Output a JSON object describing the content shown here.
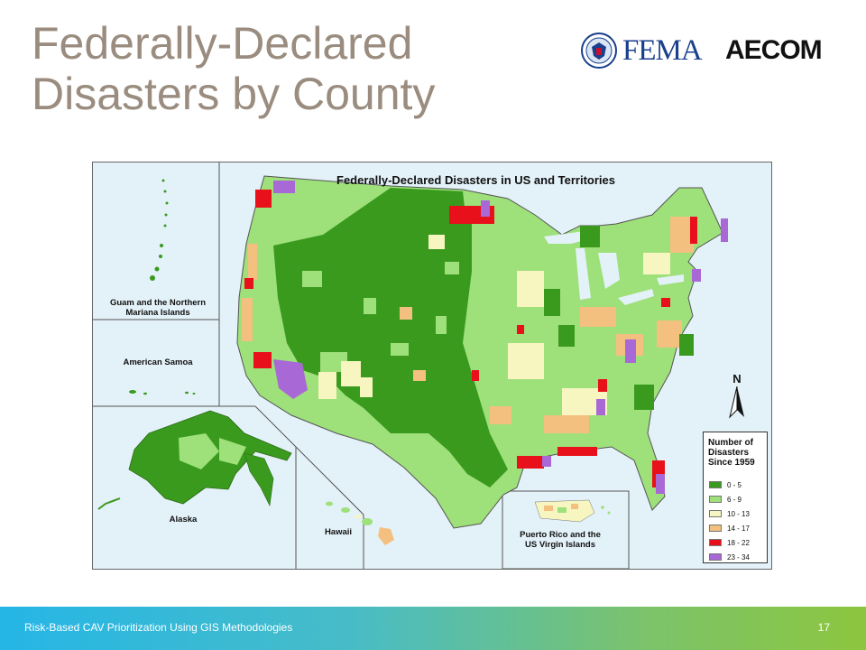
{
  "slide": {
    "title_line1": "Federally-Declared",
    "title_line2": "Disasters by County"
  },
  "logos": {
    "fema": "FEMA",
    "aecom": "AECOM"
  },
  "map": {
    "title": "Federally-Declared Disasters in US and Territories",
    "insets": {
      "guam_line1": "Guam and the Northern",
      "guam_line2": "Mariana Islands",
      "samoa": "American Samoa",
      "alaska": "Alaska",
      "hawaii": "Hawaii",
      "pr_line1": "Puerto Rico and the",
      "pr_line2": "US Virgin Islands"
    },
    "north_arrow": "N",
    "legend": {
      "title_line1": "Number of",
      "title_line2": "Disasters",
      "title_line3": "Since 1959",
      "items": [
        {
          "label": "0 - 5",
          "color": "#3a9a1e"
        },
        {
          "label": "6 - 9",
          "color": "#9ee07a"
        },
        {
          "label": "10 - 13",
          "color": "#f7f5c0"
        },
        {
          "label": "14 - 17",
          "color": "#f4c07f"
        },
        {
          "label": "18 - 22",
          "color": "#e8101a"
        },
        {
          "label": "23 - 34",
          "color": "#a868d6"
        }
      ]
    }
  },
  "footer": {
    "text": "Risk-Based CAV Prioritization Using GIS Methodologies",
    "page": "17"
  },
  "colors": {
    "title": "#9a8c7f",
    "fema_blue": "#1a3f8c",
    "water": "#e3f1f8"
  }
}
